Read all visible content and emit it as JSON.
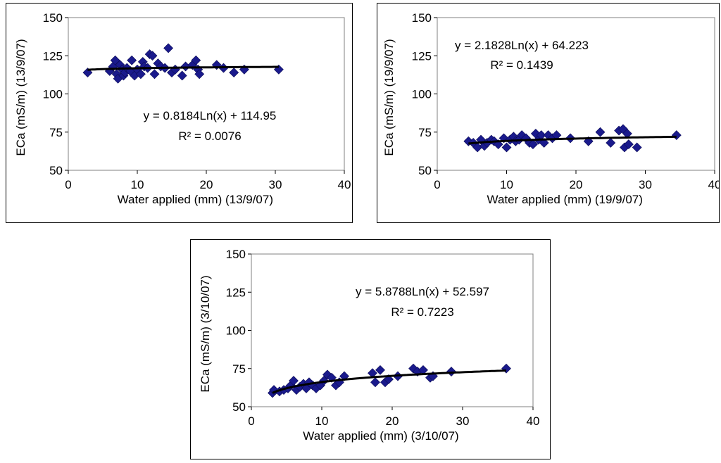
{
  "chart_data": [
    {
      "type": "scatter",
      "xlabel": "Water applied (mm) (13/9/07)",
      "ylabel": "ECa (mS/m) (13/9/07)",
      "xlim": [
        0,
        40
      ],
      "ylim": [
        50,
        150
      ],
      "xticks": [
        "0",
        "10",
        "20",
        "30",
        "40"
      ],
      "yticks": [
        "50",
        "75",
        "100",
        "125",
        "150"
      ],
      "grid": false,
      "marker_color": "#1a1a8c",
      "trend": {
        "a": 0.8184,
        "b": 114.95,
        "equation": "y = 0.8184Ln(x) + 114.95",
        "r2": "R² = 0.0076"
      },
      "points": [
        [
          2.8,
          114
        ],
        [
          6,
          115
        ],
        [
          6.5,
          118
        ],
        [
          6.8,
          122
        ],
        [
          7,
          113
        ],
        [
          7.2,
          110
        ],
        [
          7.5,
          119
        ],
        [
          7.8,
          116
        ],
        [
          8,
          112
        ],
        [
          8.2,
          114
        ],
        [
          8.5,
          117
        ],
        [
          9,
          115
        ],
        [
          9.2,
          122
        ],
        [
          9.6,
          112
        ],
        [
          10,
          116
        ],
        [
          10.5,
          113
        ],
        [
          10.8,
          121
        ],
        [
          11,
          118
        ],
        [
          11.5,
          117
        ],
        [
          11.8,
          126
        ],
        [
          12.2,
          125
        ],
        [
          12.5,
          113
        ],
        [
          13,
          120
        ],
        [
          13.4,
          118
        ],
        [
          14,
          117
        ],
        [
          14.5,
          130
        ],
        [
          15,
          114
        ],
        [
          15.5,
          116
        ],
        [
          16.5,
          112
        ],
        [
          17,
          118
        ],
        [
          18,
          119
        ],
        [
          18.5,
          122
        ],
        [
          18.8,
          116
        ],
        [
          19,
          113
        ],
        [
          21.5,
          119
        ],
        [
          22.5,
          117
        ],
        [
          24,
          114
        ],
        [
          25.5,
          116
        ],
        [
          30.5,
          116
        ]
      ]
    },
    {
      "type": "scatter",
      "xlabel": "Water applied (mm) (19/9/07)",
      "ylabel": "ECa (mS/m) (19/9/07)",
      "xlim": [
        0,
        40
      ],
      "ylim": [
        50,
        150
      ],
      "xticks": [
        "0",
        "10",
        "20",
        "30",
        "40"
      ],
      "yticks": [
        "50",
        "75",
        "100",
        "125",
        "150"
      ],
      "grid": false,
      "marker_color": "#1a1a8c",
      "trend": {
        "a": 2.1828,
        "b": 64.223,
        "equation": "y = 2.1828Ln(x) + 64.223",
        "r2": "R² = 0.1439"
      },
      "points": [
        [
          4.5,
          69
        ],
        [
          5.2,
          68
        ],
        [
          5.8,
          65
        ],
        [
          6.3,
          70
        ],
        [
          6.8,
          66
        ],
        [
          7.2,
          68
        ],
        [
          7.8,
          70
        ],
        [
          8.2,
          69
        ],
        [
          8.8,
          67
        ],
        [
          9.6,
          71
        ],
        [
          10,
          65
        ],
        [
          10.5,
          70
        ],
        [
          11,
          72
        ],
        [
          11.3,
          69
        ],
        [
          11.8,
          70
        ],
        [
          12.2,
          73
        ],
        [
          12.8,
          71
        ],
        [
          13.3,
          68
        ],
        [
          13.8,
          67
        ],
        [
          14.2,
          74
        ],
        [
          14.6,
          70
        ],
        [
          15,
          73
        ],
        [
          15.4,
          68
        ],
        [
          16,
          73
        ],
        [
          16.6,
          71
        ],
        [
          17.2,
          73
        ],
        [
          19.2,
          71
        ],
        [
          21.8,
          69
        ],
        [
          23.5,
          75
        ],
        [
          25,
          68
        ],
        [
          26.2,
          76
        ],
        [
          26.8,
          77
        ],
        [
          27,
          65
        ],
        [
          27.4,
          74
        ],
        [
          27.6,
          67
        ],
        [
          28.8,
          65
        ],
        [
          34.5,
          73
        ]
      ]
    },
    {
      "type": "scatter",
      "xlabel": "Water applied (mm) (3/10/07)",
      "ylabel": "ECa (mS/m) (3/10/07)",
      "xlim": [
        0,
        40
      ],
      "ylim": [
        50,
        150
      ],
      "xticks": [
        "0",
        "10",
        "20",
        "30",
        "40"
      ],
      "yticks": [
        "50",
        "75",
        "100",
        "125",
        "150"
      ],
      "grid": false,
      "marker_color": "#1a1a8c",
      "trend": {
        "a": 5.8788,
        "b": 52.597,
        "equation": "y = 5.8788Ln(x) + 52.597",
        "r2": "R² = 0.7223"
      },
      "points": [
        [
          3,
          59
        ],
        [
          3.2,
          61
        ],
        [
          4,
          60
        ],
        [
          4.6,
          61
        ],
        [
          5.2,
          62
        ],
        [
          5.6,
          64
        ],
        [
          6,
          67
        ],
        [
          6.4,
          61
        ],
        [
          6.9,
          63
        ],
        [
          7.4,
          65
        ],
        [
          7.8,
          62
        ],
        [
          8.2,
          66
        ],
        [
          8.7,
          64
        ],
        [
          9.2,
          62
        ],
        [
          9.8,
          64
        ],
        [
          10.3,
          67
        ],
        [
          10.8,
          71
        ],
        [
          11.4,
          69
        ],
        [
          12,
          64
        ],
        [
          12.5,
          66
        ],
        [
          13.2,
          70
        ],
        [
          17.2,
          72
        ],
        [
          17.6,
          66
        ],
        [
          18.3,
          74
        ],
        [
          19,
          66
        ],
        [
          19.5,
          68
        ],
        [
          20.8,
          70
        ],
        [
          23,
          75
        ],
        [
          23.6,
          73
        ],
        [
          24.4,
          74
        ],
        [
          25.4,
          69
        ],
        [
          25.8,
          70
        ],
        [
          28.4,
          73
        ],
        [
          36.2,
          75
        ]
      ]
    }
  ]
}
